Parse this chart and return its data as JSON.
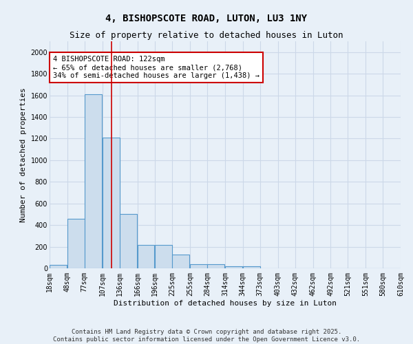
{
  "title": "4, BISHOPSCOTE ROAD, LUTON, LU3 1NY",
  "subtitle": "Size of property relative to detached houses in Luton",
  "xlabel": "Distribution of detached houses by size in Luton",
  "ylabel": "Number of detached properties",
  "bar_left_edges": [
    18,
    48,
    77,
    107,
    136,
    166,
    196,
    225,
    255,
    284,
    314,
    344,
    373,
    403,
    432,
    462,
    492,
    521,
    551,
    580
  ],
  "bar_widths": [
    29,
    29,
    29,
    29,
    29,
    29,
    29,
    29,
    29,
    29,
    29,
    29,
    29,
    29,
    29,
    29,
    29,
    29,
    29,
    29
  ],
  "bar_heights": [
    30,
    460,
    1610,
    1210,
    500,
    215,
    215,
    130,
    40,
    40,
    20,
    20,
    0,
    0,
    0,
    0,
    0,
    0,
    0,
    0
  ],
  "bar_color": "#ccdded",
  "bar_edge_color": "#5599cc",
  "ylim": [
    0,
    2100
  ],
  "yticks": [
    0,
    200,
    400,
    600,
    800,
    1000,
    1200,
    1400,
    1600,
    1800,
    2000
  ],
  "xlim": [
    18,
    610
  ],
  "xtick_labels": [
    "18sqm",
    "48sqm",
    "77sqm",
    "107sqm",
    "136sqm",
    "166sqm",
    "196sqm",
    "225sqm",
    "255sqm",
    "284sqm",
    "314sqm",
    "344sqm",
    "373sqm",
    "403sqm",
    "432sqm",
    "462sqm",
    "492sqm",
    "521sqm",
    "551sqm",
    "580sqm",
    "610sqm"
  ],
  "xtick_positions": [
    18,
    48,
    77,
    107,
    136,
    166,
    196,
    225,
    255,
    284,
    314,
    344,
    373,
    403,
    432,
    462,
    492,
    521,
    551,
    580,
    610
  ],
  "red_line_x": 122,
  "annotation_text": "4 BISHOPSCOTE ROAD: 122sqm\n← 65% of detached houses are smaller (2,768)\n34% of semi-detached houses are larger (1,438) →",
  "annotation_box_color": "#ffffff",
  "annotation_box_edge_color": "#cc0000",
  "grid_color": "#ccd8e8",
  "background_color": "#e8f0f8",
  "footer_text": "Contains HM Land Registry data © Crown copyright and database right 2025.\nContains public sector information licensed under the Open Government Licence v3.0.",
  "title_fontsize": 10,
  "subtitle_fontsize": 9,
  "axis_label_fontsize": 8,
  "tick_fontsize": 7,
  "annotation_fontsize": 7.5,
  "footer_fontsize": 6.5
}
